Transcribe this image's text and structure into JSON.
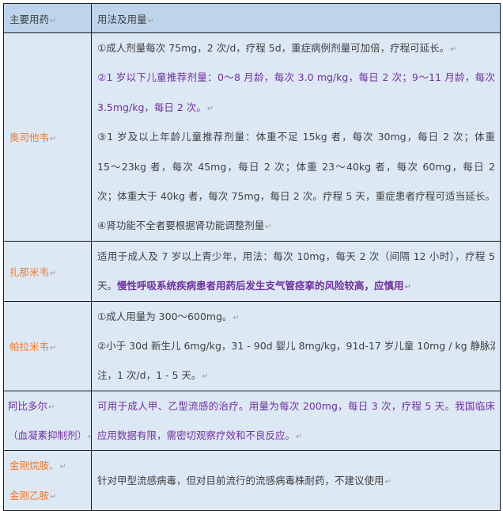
{
  "header": {
    "col1": "主要用药",
    "col2": "用法及用量"
  },
  "colors": {
    "drug_name": "#ee7b2c",
    "highlight": "#7030a0",
    "header_bg": "#bdd4ec",
    "cell_bg": "#dde8f5"
  },
  "rows": [
    {
      "drug": [
        "奥司他韦"
      ],
      "lines": [
        "①成人剂量每次 75mg，2 次/d，疗程 5d，重症病例剂量可加倍，疗程可延长。",
        "②1 岁以下儿童推荐剂量：0～8 月龄，每次 3.0 mg/kg，每日 2 次；9～11 月龄，每次",
        "3.5mg/kg，每日 2 次。",
        "③1 岁及以上年龄儿童推荐剂量：体重不足 15kg 者，每次 30mg，每日 2 次；体重",
        "15～23kg 者，每次 45mg，每日 2 次；体重 23～40kg 者，每次 60mg，每日 2",
        "次；体重大于 40kg 者，每次 75mg，每日 2 次。疗程 5 天，重症患者疗程可适当延长。",
        "④肾功能不全者要根据肾功能调整剂量"
      ]
    },
    {
      "drug": [
        "扎那米韦"
      ],
      "lines": [
        "适用于成人及 7 岁以上青少年，用法：每次 10mg，每天 2 次（间隔 12 小时），疗程 5",
        "天。"
      ],
      "highlight": "慢性呼吸系统疾病患者用药后发生支气管痉挛的风险较高，应慎用"
    },
    {
      "drug": [
        "帕拉米韦"
      ],
      "lines": [
        "①成人用量为 300～600mg。",
        "②小于 30d 新生儿 6mg/kg，31 - 90d 婴儿 8mg/kg，91d-17 岁儿童 10mg / kg 静脉滴",
        "注，1 次/d，1 - 5 天。"
      ]
    },
    {
      "drug": [
        "阿比多尔",
        "（血凝素抑制剂）"
      ],
      "lines": [
        "可用于成人甲、乙型流感的治疗。用量为每次 200mg，每日 3 次，疗程 5 天。我国临床",
        "应用数据有限，需密切观察疗效和不良反应。"
      ]
    },
    {
      "drug": [
        "金刚烷胺、",
        "金刚乙胺"
      ],
      "lines": [
        "针对甲型流感病毒，但对目前流行的流感病毒株耐药，不建议使用"
      ]
    }
  ]
}
